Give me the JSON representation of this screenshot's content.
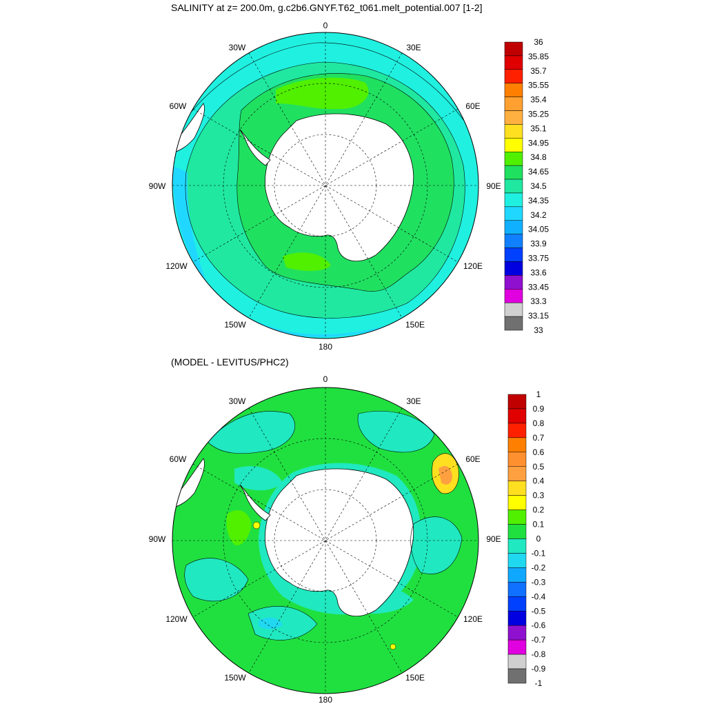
{
  "top_panel": {
    "title": "SALINITY at z= 200.0m, g.c2b6.GNYF.T62_t061.melt_potential.007 [1-2]",
    "lon_labels": [
      "0",
      "30E",
      "60E",
      "90E",
      "120E",
      "150E",
      "180",
      "150W",
      "120W",
      "90W",
      "60W",
      "30W"
    ],
    "colorbar": {
      "labels": [
        "36",
        "35.85",
        "35.7",
        "35.55",
        "35.4",
        "35.25",
        "35.1",
        "34.95",
        "34.8",
        "34.65",
        "34.5",
        "34.35",
        "34.2",
        "34.05",
        "33.9",
        "33.75",
        "33.6",
        "33.45",
        "33.3",
        "33.15",
        "33"
      ],
      "colors": [
        "#c00000",
        "#e00000",
        "#ff2000",
        "#ff8000",
        "#ffa030",
        "#ffb040",
        "#ffe020",
        "#ffff00",
        "#50f000",
        "#20e060",
        "#20e8a0",
        "#20f0e0",
        "#20d8ff",
        "#10b0ff",
        "#1080ff",
        "#0040ff",
        "#0000e0",
        "#9010d0",
        "#e000e0",
        "#d0d0d0",
        "#707070"
      ]
    }
  },
  "bottom_panel": {
    "title": "(MODEL - LEVITUS/PHC2)",
    "lon_labels": [
      "0",
      "30E",
      "60E",
      "90E",
      "120E",
      "150E",
      "180",
      "150W",
      "120W",
      "90W",
      "60W",
      "30W"
    ],
    "colorbar": {
      "labels": [
        "1",
        "0.9",
        "0.8",
        "0.7",
        "0.6",
        "0.5",
        "0.4",
        "0.3",
        "0.2",
        "0.1",
        "0",
        "-0.1",
        "-0.2",
        "-0.3",
        "-0.4",
        "-0.5",
        "-0.6",
        "-0.7",
        "-0.8",
        "-0.9",
        "-1"
      ],
      "colors": [
        "#c00000",
        "#e00000",
        "#ff2000",
        "#ff8000",
        "#ff9030",
        "#ffa040",
        "#ffe020",
        "#ffff00",
        "#50f000",
        "#20e040",
        "#20e8c0",
        "#20d8f0",
        "#10a8ff",
        "#1070ff",
        "#0040ff",
        "#0000e0",
        "#9010d0",
        "#e000e0",
        "#d0d0d0",
        "#707070"
      ]
    }
  },
  "colors": {
    "land": "#ffffff",
    "coast": "#000000",
    "grid": "#000000"
  }
}
